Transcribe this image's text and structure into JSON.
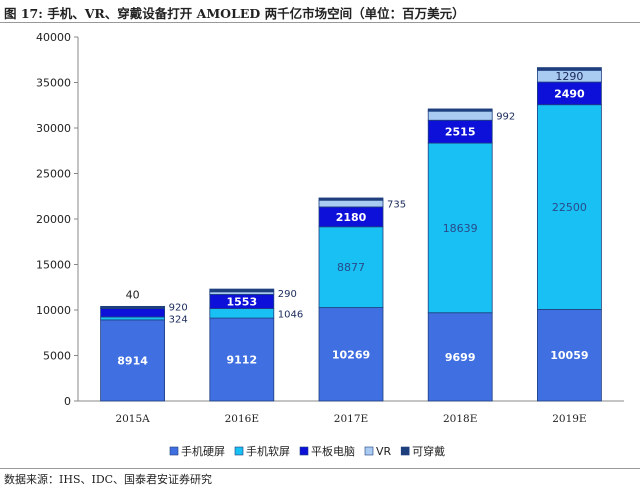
{
  "title": "图 17: 手机、VR、穿戴设备打开 AMOLED 两千亿市场空间（单位：百万美元）",
  "source": "数据来源：IHS、IDC、国泰君安证券研究",
  "chart_data": {
    "type": "bar",
    "stacked": true,
    "categories": [
      "2015A",
      "2016E",
      "2017E",
      "2018E",
      "2019E"
    ],
    "ylim": [
      0,
      40000
    ],
    "yticks": [
      0,
      5000,
      10000,
      15000,
      20000,
      25000,
      30000,
      35000,
      40000
    ],
    "grid": false,
    "legend_position": "bottom",
    "series": [
      {
        "name": "手机硬屏",
        "color": "#3f6fe0",
        "label_color": "#ffffff",
        "values": [
          8914,
          9112,
          10269,
          9699,
          10059
        ],
        "labels": [
          "8914",
          "9112",
          "10269",
          "9699",
          "10059"
        ]
      },
      {
        "name": "手机软屏",
        "color": "#18c0f4",
        "label_color": "#2a4a8a",
        "values": [
          324,
          1046,
          8877,
          18639,
          22500
        ],
        "labels": [
          "324",
          "1046",
          "8877",
          "18639",
          "22500"
        ]
      },
      {
        "name": "平板电脑",
        "color": "#0c10d8",
        "label_color": "#ffffff",
        "values": [
          920,
          1553,
          2180,
          2515,
          2490
        ],
        "labels": [
          "920",
          "1553",
          "2180",
          "2515",
          "2490"
        ]
      },
      {
        "name": "VR",
        "color": "#a9cbf2",
        "label_color": "#1a2a5a",
        "values": [
          40,
          290,
          735,
          992,
          1290
        ],
        "labels": [
          "40",
          "290",
          "735",
          "992",
          "1290"
        ]
      },
      {
        "name": "可穿戴",
        "color": "#1e3f7e",
        "label_color": "#ffffff",
        "values": [
          200,
          300,
          250,
          250,
          300
        ],
        "labels": [
          "",
          "",
          "",
          "",
          ""
        ]
      }
    ]
  }
}
